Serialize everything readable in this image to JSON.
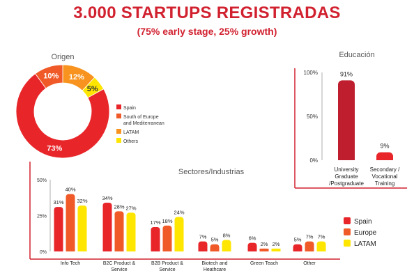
{
  "header": {
    "title": "3.000 STARTUPS REGISTRADAS",
    "subtitle": "(75% early stage, 25% growth)"
  },
  "chart_data": [
    {
      "id": "origen",
      "type": "pie",
      "title": "Origen",
      "categories": [
        "Spain",
        "South of Europe and Mediterranean",
        "LATAM",
        "Others"
      ],
      "values": [
        73,
        10,
        12,
        5
      ],
      "labels": [
        "73%",
        "10%",
        "12%",
        "5%"
      ],
      "legend_lines": [
        [
          "Spain"
        ],
        [
          "South of Europe",
          "and Mediterranean"
        ],
        [
          "LATAM"
        ],
        [
          "Others"
        ]
      ],
      "colors": [
        "#e8262a",
        "#f05a28",
        "#f7931e",
        "#ffe600"
      ],
      "legend": "right"
    },
    {
      "id": "educacion",
      "type": "bar",
      "title": "Educación",
      "categories": [
        "University Graduate /Postgraduate",
        "Secondary / Vocational Training"
      ],
      "category_lines": [
        [
          "University",
          "Graduate",
          "/Postgraduate"
        ],
        [
          "Secondary /",
          "Vocational",
          "Training"
        ]
      ],
      "values": [
        91,
        9
      ],
      "labels": [
        "91%",
        "9%"
      ],
      "yticks": [
        "100%",
        "50%",
        "0%"
      ],
      "ylim": [
        0,
        100
      ],
      "colors": [
        "#be1e2d",
        "#e8262a"
      ]
    },
    {
      "id": "sectores",
      "type": "bar",
      "title": "Sectores/Industrias",
      "categories": [
        "Info Tech",
        "B2C Product & Service",
        "B2B Product & Service",
        "Biotech and Heathcare",
        "Green Teach",
        "Other"
      ],
      "category_lines": [
        [
          "Info Tech"
        ],
        [
          "B2C Product &",
          "Service"
        ],
        [
          "B2B Product &",
          "Service"
        ],
        [
          "Biotech and",
          "Heathcare"
        ],
        [
          "Green Teach"
        ],
        [
          "Other"
        ]
      ],
      "series": [
        {
          "name": "Spain",
          "values": [
            31,
            34,
            17,
            7,
            6,
            5
          ],
          "labels": [
            "31%",
            "34%",
            "17%",
            "7%",
            "6%",
            "5%"
          ]
        },
        {
          "name": "Europe",
          "values": [
            40,
            28,
            18,
            5,
            2,
            7
          ],
          "labels": [
            "40%",
            "28%",
            "18%",
            "5%",
            "2%",
            "7%"
          ]
        },
        {
          "name": "LATAM",
          "values": [
            32,
            27,
            24,
            8,
            2,
            7
          ],
          "labels": [
            "32%",
            "27%",
            "24%",
            "8%",
            "2%",
            "7%"
          ]
        }
      ],
      "yticks": [
        "50%",
        "25%",
        "0%"
      ],
      "ylim": [
        0,
        50
      ],
      "colors": [
        "#e8262a",
        "#f05a28",
        "#ffe600"
      ],
      "legend": "right"
    }
  ]
}
